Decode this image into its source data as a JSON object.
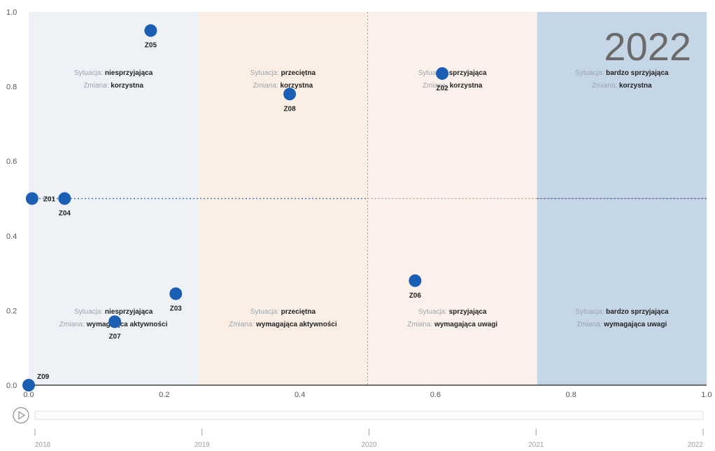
{
  "chart_data": {
    "type": "scatter",
    "title": "",
    "xlabel": "",
    "ylabel": "",
    "xlim": [
      0,
      1
    ],
    "ylim": [
      0,
      1
    ],
    "x_ticks": [
      "0.0",
      "0.2",
      "0.4",
      "0.6",
      "0.8",
      "1.0"
    ],
    "y_ticks": [
      "0.0",
      "0.2",
      "0.4",
      "0.6",
      "0.8",
      "1.0"
    ],
    "grid": false,
    "year": "2022",
    "x_reference": 0.5,
    "y_reference": 0.5,
    "zones": [
      {
        "x_range": [
          0,
          0.25
        ],
        "color": "#eef1f6"
      },
      {
        "x_range": [
          0.25,
          0.5
        ],
        "color": "#fbeee4"
      },
      {
        "x_range": [
          0.5,
          0.75
        ],
        "color": "#fcf1ea"
      },
      {
        "x_range": [
          0.75,
          1.0
        ],
        "color": "#c5d6e6"
      }
    ],
    "zone_labels": [
      {
        "x": 0.125,
        "y": 0.82,
        "situation": "niesprzyjająca",
        "change": "korzystna"
      },
      {
        "x": 0.375,
        "y": 0.82,
        "situation": "przeciętna",
        "change": "korzystna"
      },
      {
        "x": 0.625,
        "y": 0.82,
        "situation": "sprzyjająca",
        "change": "korzystna"
      },
      {
        "x": 0.875,
        "y": 0.82,
        "situation": "bardzo sprzyjająca",
        "change": "korzystna"
      },
      {
        "x": 0.125,
        "y": 0.18,
        "situation": "niesprzyjająca",
        "change": "wymagająca aktywności"
      },
      {
        "x": 0.375,
        "y": 0.18,
        "situation": "przeciętna",
        "change": "wymagająca aktywności"
      },
      {
        "x": 0.625,
        "y": 0.18,
        "situation": "sprzyjająca",
        "change": "wymagająca uwagi"
      },
      {
        "x": 0.875,
        "y": 0.18,
        "situation": "bardzo sprzyjająca",
        "change": "wymagająca uwagi"
      }
    ],
    "zone_label_keys": {
      "situation": "Sytuacja:",
      "change": "Zmiana:"
    },
    "points": [
      {
        "label": "Z05",
        "x": 0.18,
        "y": 0.95,
        "label_pos": "below"
      },
      {
        "label": "Z08",
        "x": 0.385,
        "y": 0.78,
        "label_pos": "below"
      },
      {
        "label": "Z02",
        "x": 0.61,
        "y": 0.835,
        "label_pos": "below"
      },
      {
        "label": "Z01",
        "x": 0.005,
        "y": 0.5,
        "label_pos": "right"
      },
      {
        "label": "Z04",
        "x": 0.053,
        "y": 0.5,
        "label_pos": "below"
      },
      {
        "label": "Z03",
        "x": 0.217,
        "y": 0.245,
        "label_pos": "below"
      },
      {
        "label": "Z07",
        "x": 0.127,
        "y": 0.17,
        "label_pos": "below"
      },
      {
        "label": "Z06",
        "x": 0.57,
        "y": 0.28,
        "label_pos": "below"
      },
      {
        "label": "Z09",
        "x": 0.0,
        "y": 0.0,
        "label_pos": "upright"
      }
    ],
    "point_color": "#1a5fb4",
    "timeline": {
      "years": [
        "2018",
        "2019",
        "2020",
        "2021",
        "2022"
      ],
      "current": "2022"
    }
  }
}
